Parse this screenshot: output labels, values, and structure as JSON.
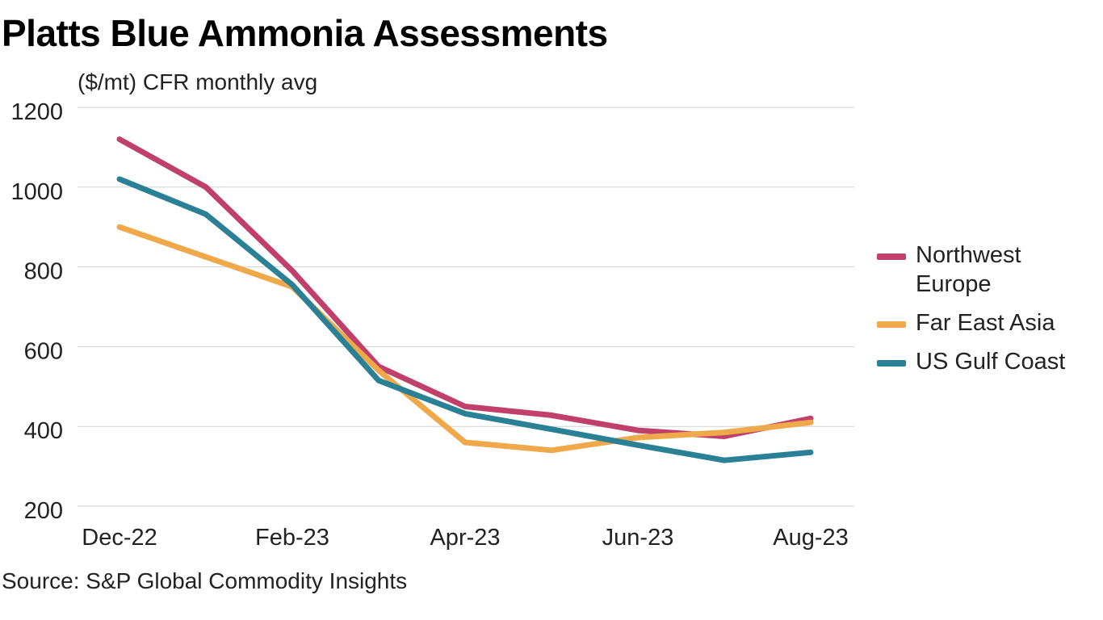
{
  "title": "Platts Blue Ammonia Assessments",
  "subtitle": "($/mt) CFR monthly avg",
  "source": "Source: S&P Global Commodity Insights",
  "chart_data": {
    "type": "line",
    "title": "Platts Blue Ammonia Assessments",
    "subtitle": "($/mt) CFR monthly avg",
    "x": [
      "Dec-22",
      "Jan-23",
      "Feb-23",
      "Mar-23",
      "Apr-23",
      "May-23",
      "Jun-23",
      "Jul-23",
      "Aug-23"
    ],
    "x_tick_labels": [
      "Dec-22",
      "Feb-23",
      "Apr-23",
      "Jun-23",
      "Aug-23"
    ],
    "y_ticks": [
      200,
      400,
      600,
      800,
      1000,
      1200
    ],
    "ylim": [
      200,
      1200
    ],
    "grid": "horizontal",
    "legend_position": "right",
    "series": [
      {
        "name": "Northwest Europe",
        "color": "#c0406b",
        "values": [
          1120,
          1000,
          790,
          550,
          450,
          428,
          390,
          375,
          420
        ]
      },
      {
        "name": "Far East Asia",
        "color": "#f0a94a",
        "values": [
          900,
          825,
          750,
          540,
          360,
          340,
          372,
          385,
          410
        ]
      },
      {
        "name": "US Gulf Coast",
        "color": "#2a8196",
        "values": [
          1020,
          932,
          755,
          515,
          432,
          393,
          353,
          315,
          335
        ]
      }
    ]
  }
}
